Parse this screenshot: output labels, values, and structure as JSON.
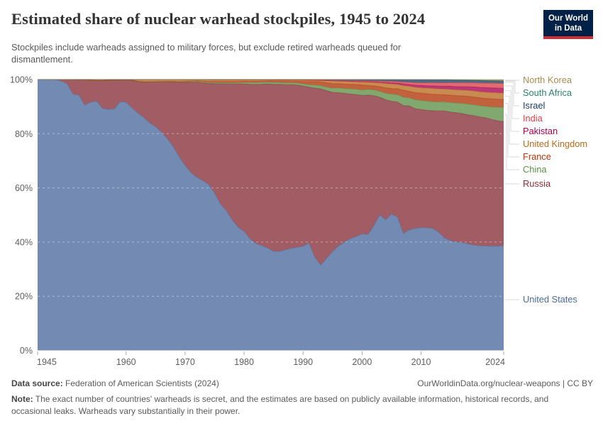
{
  "header": {
    "title": "Estimated share of nuclear warhead stockpiles, 1945 to 2024",
    "subtitle": "Stockpiles include warheads assigned to military forces, but exclude retired warheads queued for dismantlement.",
    "logo": {
      "line1": "Our World",
      "line2": "in Data",
      "bg": "#002147",
      "accent": "#CE2E33"
    }
  },
  "footer": {
    "datasource_label": "Data source:",
    "datasource": "Federation of American Scientists (2024)",
    "url": "OurWorldinData.org/nuclear-weapons",
    "separator": "|",
    "license": "CC BY",
    "note_label": "Note:",
    "note": "The exact number of countries' warheads is secret, and the estimates are based on publicly available information, historical records, and occasional leaks. Warheads vary substantially in their power."
  },
  "chart_data": {
    "type": "area",
    "stacked": true,
    "relative": true,
    "unit": "%",
    "title": "Estimated share of nuclear warhead stockpiles, 1945 to 2024",
    "x_years": {
      "start": 1945,
      "end": 2024,
      "step": 1
    },
    "x_ticks": [
      1945,
      1960,
      1970,
      1980,
      1990,
      2000,
      2010,
      2024
    ],
    "y_ticks": [
      {
        "value": 0,
        "label": "0%"
      },
      {
        "value": 20,
        "label": "20%"
      },
      {
        "value": 40,
        "label": "40%"
      },
      {
        "value": 60,
        "label": "60%"
      },
      {
        "value": 80,
        "label": "80%"
      },
      {
        "value": 100,
        "label": "100%"
      }
    ],
    "ylim": [
      0,
      100
    ],
    "grid": "dashed",
    "legend_position": "right",
    "series": [
      {
        "name": "United States",
        "color": "#4C6A9C",
        "values": [
          100,
          100,
          100,
          100,
          99.4,
          98.4,
          94.6,
          94.2,
          90.6,
          91.6,
          92,
          89.3,
          89,
          89.1,
          91.8,
          91.6,
          89.5,
          87.6,
          86,
          84,
          82.6,
          80.6,
          78.1,
          75.1,
          71.5,
          68.3,
          65.6,
          63.9,
          62.7,
          61.2,
          58.1,
          54,
          51.6,
          48.1,
          45.5,
          43.9,
          41.2,
          39.5,
          38.7,
          37.8,
          36.6,
          36.5,
          37.1,
          37.7,
          38.1,
          38.4,
          39.6,
          34.3,
          31.5,
          34,
          36.5,
          38.5,
          40,
          41.2,
          42,
          43,
          42.8,
          46,
          50,
          48.2,
          50.3,
          49.2,
          43.2,
          44.5,
          45,
          45.3,
          45.2,
          45,
          43.5,
          41.5,
          40.5,
          40,
          39.8,
          39.3,
          38.8,
          38.6,
          38.5,
          38.5,
          38.4,
          38.7
        ]
      },
      {
        "name": "Russia",
        "color": "#883039",
        "values": [
          0,
          0,
          0,
          0,
          0.6,
          1.6,
          5.4,
          5.7,
          9.3,
          8.1,
          7.6,
          10.3,
          10.7,
          10.6,
          8,
          8.2,
          10.3,
          11.7,
          13.1,
          15.1,
          16.5,
          18.6,
          21,
          24,
          27.5,
          30.7,
          33.4,
          35.1,
          36.1,
          37.4,
          40.4,
          44.4,
          46.8,
          50.3,
          53,
          54.5,
          57.1,
          58.8,
          59.6,
          60.6,
          61.8,
          61.8,
          61,
          60.4,
          59.9,
          59.3,
          57.6,
          62.5,
          65,
          61.9,
          58.7,
          56.6,
          54.9,
          53.4,
          52.4,
          51.1,
          51.5,
          48,
          43.4,
          44.3,
          41.6,
          42.5,
          47.2,
          45.7,
          44.2,
          43.6,
          43.3,
          43.4,
          44.7,
          47,
          47.5,
          47.8,
          47.6,
          47.7,
          47.8,
          47.6,
          47.3,
          46.7,
          46.3,
          45.8
        ]
      },
      {
        "name": "China",
        "color": "#5C8F47",
        "values": [
          0,
          0,
          0,
          0,
          0,
          0,
          0,
          0,
          0,
          0,
          0,
          0,
          0,
          0,
          0,
          0,
          0,
          0,
          0,
          0.003,
          0.013,
          0.05,
          0.06,
          0.09,
          0.13,
          0.2,
          0.25,
          0.31,
          0.34,
          0.37,
          0.38,
          0.4,
          0.4,
          0.43,
          0.44,
          0.5,
          0.59,
          0.62,
          0.63,
          0.67,
          0.67,
          0.66,
          0.66,
          0.68,
          0.72,
          0.77,
          0.9,
          1.07,
          1.18,
          1.33,
          1.55,
          1.75,
          1.75,
          1.9,
          1.95,
          1.95,
          2.05,
          2.1,
          2.15,
          2.4,
          2.6,
          2.7,
          3.1,
          3,
          3.3,
          3.3,
          3.35,
          3.3,
          3.3,
          3.3,
          3.5,
          3.5,
          3.7,
          3.9,
          4,
          4.1,
          4.2,
          4.6,
          5,
          5.2
        ]
      },
      {
        "name": "France",
        "color": "#B13507",
        "values": [
          0,
          0,
          0,
          0,
          0,
          0,
          0,
          0,
          0,
          0,
          0,
          0,
          0,
          0,
          0,
          0,
          0,
          0,
          0,
          0.01,
          0.09,
          0.09,
          0.09,
          0.09,
          0.09,
          0.09,
          0.11,
          0.17,
          0.26,
          0.31,
          0.4,
          0.44,
          0.46,
          0.46,
          0.44,
          0.45,
          0.49,
          0.47,
          0.47,
          0.45,
          0.57,
          0.56,
          0.66,
          0.66,
          0.69,
          0.9,
          1.1,
          1.35,
          1.45,
          1.6,
          1.7,
          1.6,
          1.65,
          1.7,
          1.75,
          1.9,
          1.45,
          1.5,
          1.75,
          2,
          2.1,
          2.2,
          2.6,
          2.4,
          2.6,
          2.7,
          2.75,
          2.8,
          2.75,
          2.7,
          2.75,
          2.8,
          2.85,
          2.9,
          2.9,
          2.95,
          2.95,
          3,
          3,
          3
        ]
      },
      {
        "name": "United Kingdom",
        "color": "#B96A20",
        "values": [
          0,
          0,
          0,
          0,
          0,
          0,
          0,
          0.1,
          0.1,
          0.3,
          0.4,
          0.4,
          0.3,
          0.3,
          0.2,
          0.15,
          0.2,
          0.7,
          0.9,
          0.9,
          0.8,
          0.7,
          0.7,
          0.7,
          0.8,
          0.7,
          0.6,
          0.5,
          0.6,
          0.7,
          0.7,
          0.7,
          0.7,
          0.7,
          0.65,
          0.6,
          0.6,
          0.6,
          0.55,
          0.45,
          0.45,
          0.45,
          0.45,
          0.45,
          0.5,
          0.55,
          0.6,
          0.5,
          0.55,
          0.8,
          1,
          0.9,
          1,
          1,
          1,
          1.1,
          1.2,
          1.25,
          1.4,
          1.6,
          1.7,
          1.6,
          1.7,
          1.9,
          2,
          2,
          2.1,
          2.1,
          2.1,
          2.1,
          2.1,
          2.1,
          2.1,
          2.2,
          2.2,
          2.2,
          2.3,
          2.3,
          2.3,
          2.3
        ]
      },
      {
        "name": "Pakistan",
        "color": "#A8004E",
        "values": [
          0,
          0,
          0,
          0,
          0,
          0,
          0,
          0,
          0,
          0,
          0,
          0,
          0,
          0,
          0,
          0,
          0,
          0,
          0,
          0,
          0,
          0,
          0,
          0,
          0,
          0,
          0,
          0,
          0,
          0,
          0,
          0,
          0,
          0,
          0,
          0,
          0,
          0,
          0,
          0,
          0,
          0,
          0,
          0,
          0,
          0.004,
          0.008,
          0.017,
          0.027,
          0.046,
          0.066,
          0.094,
          0.115,
          0.145,
          0.17,
          0.19,
          0.22,
          0.25,
          0.29,
          0.36,
          0.41,
          0.46,
          0.59,
          0.66,
          0.78,
          0.85,
          0.9,
          0.97,
          1.03,
          1.07,
          1.18,
          1.23,
          1.27,
          1.32,
          1.5,
          1.65,
          1.7,
          1.75,
          1.77,
          1.77
        ]
      },
      {
        "name": "India",
        "color": "#DA4048",
        "values": [
          0,
          0,
          0,
          0,
          0,
          0,
          0,
          0,
          0,
          0,
          0,
          0,
          0,
          0,
          0,
          0,
          0,
          0,
          0,
          0,
          0,
          0,
          0,
          0,
          0,
          0,
          0,
          0,
          0,
          0.002,
          0.002,
          0.002,
          0.002,
          0.004,
          0.004,
          0.005,
          0.005,
          0.007,
          0.007,
          0.008,
          0.009,
          0.011,
          0.013,
          0.015,
          0.017,
          0.025,
          0.035,
          0.05,
          0.065,
          0.09,
          0.115,
          0.145,
          0.17,
          0.2,
          0.23,
          0.25,
          0.28,
          0.31,
          0.36,
          0.43,
          0.49,
          0.54,
          0.68,
          0.77,
          0.9,
          0.97,
          1.02,
          1.09,
          1.15,
          1.19,
          1.3,
          1.36,
          1.4,
          1.45,
          1.5,
          1.6,
          1.65,
          1.7,
          1.75,
          1.8
        ]
      },
      {
        "name": "Israel",
        "color": "#1D3D63",
        "values": [
          0,
          0,
          0,
          0,
          0,
          0,
          0,
          0,
          0,
          0,
          0,
          0,
          0,
          0,
          0,
          0,
          0,
          0,
          0,
          0,
          0,
          0,
          0.005,
          0.008,
          0.013,
          0.02,
          0.025,
          0.03,
          0.034,
          0.037,
          0.042,
          0.048,
          0.05,
          0.055,
          0.06,
          0.06,
          0.066,
          0.069,
          0.07,
          0.074,
          0.077,
          0.083,
          0.09,
          0.1,
          0.11,
          0.12,
          0.15,
          0.19,
          0.22,
          0.27,
          0.32,
          0.37,
          0.4,
          0.44,
          0.47,
          0.49,
          0.53,
          0.55,
          0.6,
          0.69,
          0.74,
          0.8,
          0.96,
          1.04,
          1.17,
          1.2,
          1.2,
          1.2,
          1.2,
          1.2,
          1.1,
          1.1,
          1.05,
          1,
          0.95,
          0.95,
          0.94,
          0.93,
          0.93,
          0.94
        ]
      },
      {
        "name": "South Africa",
        "color": "#2C8465",
        "values": [
          0,
          0,
          0,
          0,
          0,
          0,
          0,
          0,
          0,
          0,
          0,
          0,
          0,
          0,
          0,
          0,
          0,
          0,
          0,
          0,
          0,
          0,
          0,
          0,
          0,
          0,
          0,
          0,
          0,
          0,
          0,
          0,
          0,
          0,
          0.002,
          0.002,
          0.002,
          0.003,
          0.003,
          0.005,
          0.005,
          0.006,
          0.008,
          0.009,
          0.01,
          0.011,
          0.012,
          0,
          0,
          0,
          0,
          0,
          0,
          0,
          0,
          0,
          0,
          0,
          0,
          0,
          0,
          0,
          0,
          0,
          0,
          0,
          0,
          0,
          0,
          0,
          0,
          0,
          0,
          0,
          0,
          0,
          0,
          0,
          0,
          0
        ]
      },
      {
        "name": "North Korea",
        "color": "#A48C52",
        "values": [
          0,
          0,
          0,
          0,
          0,
          0,
          0,
          0,
          0,
          0,
          0,
          0,
          0,
          0,
          0,
          0,
          0,
          0,
          0,
          0,
          0,
          0,
          0,
          0,
          0,
          0,
          0,
          0,
          0,
          0,
          0,
          0,
          0,
          0,
          0,
          0,
          0,
          0,
          0,
          0,
          0,
          0,
          0,
          0,
          0,
          0,
          0,
          0,
          0,
          0,
          0,
          0,
          0,
          0,
          0,
          0,
          0,
          0,
          0,
          0,
          0,
          0.006,
          0.015,
          0.016,
          0.027,
          0.037,
          0.046,
          0.056,
          0.065,
          0.075,
          0.1,
          0.15,
          0.2,
          0.26,
          0.31,
          0.37,
          0.42,
          0.47,
          0.5,
          0.52
        ]
      }
    ],
    "legend_order_top_to_bottom": [
      "North Korea",
      "South Africa",
      "Israel",
      "India",
      "Pakistan",
      "United Kingdom",
      "France",
      "China",
      "Russia",
      "United States"
    ]
  }
}
